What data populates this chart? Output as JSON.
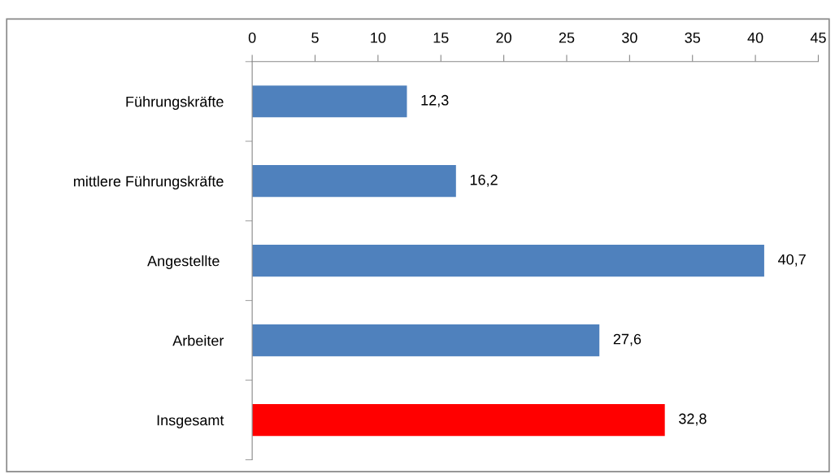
{
  "chart_data": {
    "type": "bar",
    "orientation": "horizontal",
    "categories": [
      "Führungskräfte",
      "mittlere Führungskräfte",
      "Angestellte ",
      "Arbeiter",
      "Insgesamt"
    ],
    "values": [
      12.3,
      16.2,
      40.7,
      27.6,
      32.8
    ],
    "colors": [
      "#4f81bd",
      "#4f81bd",
      "#4f81bd",
      "#4f81bd",
      "#ff0000"
    ],
    "value_labels": [
      "12,3",
      "16,2",
      "40,7",
      "27,6",
      "32,8"
    ],
    "xlim": [
      0,
      45
    ],
    "xticks": [
      0,
      5,
      10,
      15,
      20,
      25,
      30,
      35,
      40,
      45
    ],
    "grid": false,
    "legend": false
  }
}
